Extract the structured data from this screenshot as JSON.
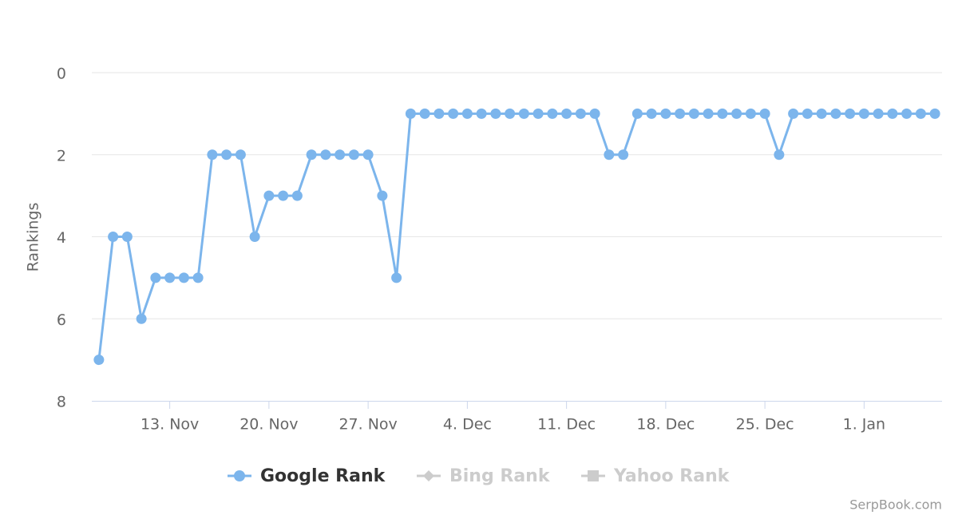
{
  "chart_data": {
    "type": "line",
    "y_label": "Rankings",
    "credits": "SerpBook.com",
    "reversed_y": true,
    "grid": true,
    "x": [
      "11-08",
      "11-09",
      "11-10",
      "11-11",
      "11-12",
      "11-13",
      "11-14",
      "11-15",
      "11-16",
      "11-17",
      "11-18",
      "11-19",
      "11-20",
      "11-21",
      "11-22",
      "11-23",
      "11-24",
      "11-25",
      "11-26",
      "11-27",
      "11-28",
      "11-29",
      "11-30",
      "12-01",
      "12-02",
      "12-03",
      "12-04",
      "12-05",
      "12-06",
      "12-07",
      "12-08",
      "12-09",
      "12-10",
      "12-11",
      "12-12",
      "12-13",
      "12-14",
      "12-15",
      "12-16",
      "12-17",
      "12-18",
      "12-19",
      "12-20",
      "12-21",
      "12-22",
      "12-23",
      "12-24",
      "12-25",
      "12-26",
      "12-27",
      "12-28",
      "12-29",
      "12-30",
      "12-31",
      "01-01",
      "01-02",
      "01-03",
      "01-04",
      "01-05",
      "01-06"
    ],
    "xticks": [
      {
        "value": "11-13",
        "label": "13. Nov"
      },
      {
        "value": "11-20",
        "label": "20. Nov"
      },
      {
        "value": "11-27",
        "label": "27. Nov"
      },
      {
        "value": "12-04",
        "label": "4. Dec"
      },
      {
        "value": "12-11",
        "label": "11. Dec"
      },
      {
        "value": "12-18",
        "label": "18. Dec"
      },
      {
        "value": "12-25",
        "label": "25. Dec"
      },
      {
        "value": "01-01",
        "label": "1. Jan"
      }
    ],
    "ylim": [
      0,
      8
    ],
    "yticks": [
      0,
      2,
      4,
      6,
      8
    ],
    "series": [
      {
        "name": "Google Rank",
        "color": "#7cb5ec",
        "symbol": "circle",
        "visible": true,
        "values": [
          7,
          4,
          4,
          6,
          5,
          5,
          5,
          5,
          2,
          2,
          2,
          4,
          3,
          3,
          3,
          2,
          2,
          2,
          2,
          2,
          3,
          5,
          1,
          1,
          1,
          1,
          1,
          1,
          1,
          1,
          1,
          1,
          1,
          1,
          1,
          1,
          2,
          2,
          1,
          1,
          1,
          1,
          1,
          1,
          1,
          1,
          1,
          1,
          2,
          1,
          1,
          1,
          1,
          1,
          1,
          1,
          1,
          1,
          1,
          1
        ]
      },
      {
        "name": "Bing Rank",
        "color": "#cccccc",
        "symbol": "diamond",
        "visible": false
      },
      {
        "name": "Yahoo Rank",
        "color": "#cccccc",
        "symbol": "square",
        "visible": false
      }
    ]
  }
}
